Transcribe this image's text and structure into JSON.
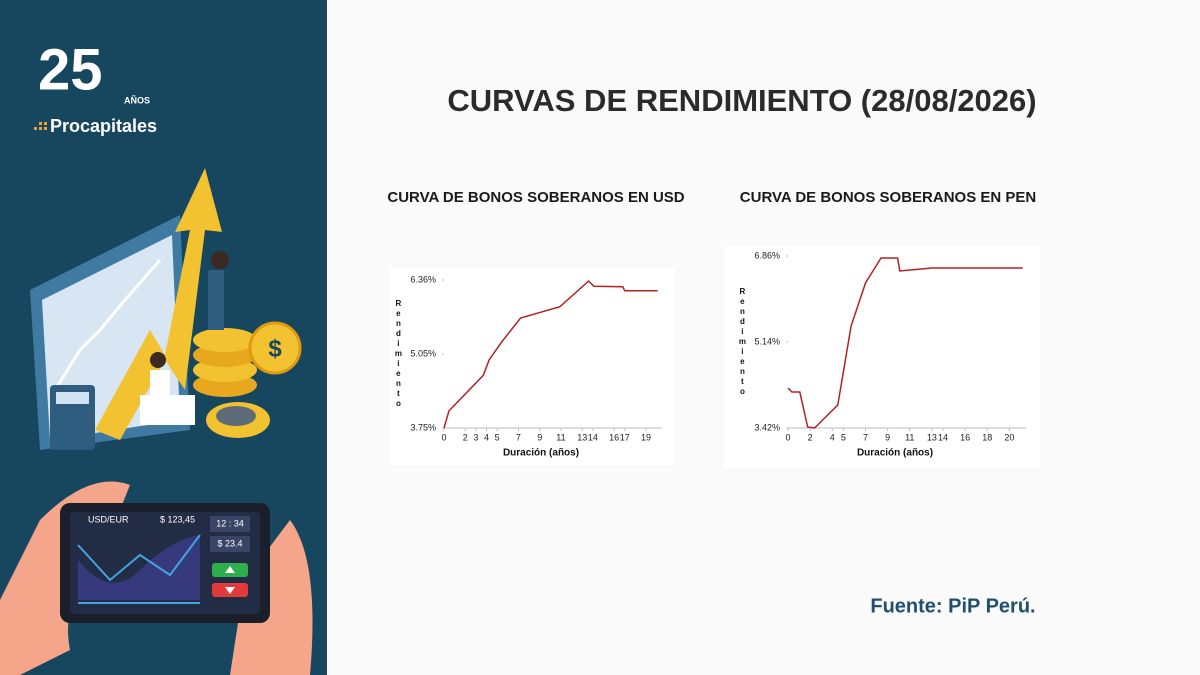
{
  "slide": {
    "title": "CURVAS DE RENDIMIENTO (28/08/2026)",
    "source": "Fuente: PiP Perú.",
    "logo": {
      "number": "25",
      "years": "AÑOS",
      "brand": "Procapitales"
    }
  },
  "illustration": {
    "pair": "USD/EUR",
    "price": "$ 123,45",
    "time": "12 : 34",
    "amount": "$ 23.4"
  },
  "chart_data": [
    {
      "type": "line",
      "title": "CURVA DE BONOS SOBERANOS EN USD",
      "xlabel": "Duración (años)",
      "ylabel": "Rendimiento",
      "color": "#b22222",
      "x": [
        0,
        0.46,
        3.7,
        4.24,
        5.44,
        7.2,
        10.9,
        13.6,
        14.1,
        16.8,
        17.0,
        20.1
      ],
      "values": [
        3.75,
        4.05,
        4.68,
        4.95,
        5.27,
        5.69,
        5.89,
        6.34,
        6.25,
        6.24,
        6.17,
        6.17
      ],
      "xlim": [
        0,
        20.5
      ],
      "xticks": [
        0,
        2,
        3,
        4,
        5,
        7,
        9,
        11,
        13,
        14,
        16,
        17,
        19
      ],
      "ylim": [
        3.75,
        6.36
      ],
      "yticks": [
        {
          "value": 3.75,
          "label": "3.75%"
        },
        {
          "value": 5.05,
          "label": "5.05%"
        },
        {
          "value": 6.36,
          "label": "6.36%"
        }
      ]
    },
    {
      "type": "line",
      "title": "CURVA DE BONOS SOBERANOS EN PEN",
      "xlabel": "Duración (años)",
      "ylabel": "Rendimiento",
      "color": "#b22222",
      "x": [
        0,
        0.36,
        1.07,
        1.78,
        2.4,
        4.5,
        5.7,
        7.0,
        8.4,
        9.9,
        10.1,
        13.0,
        21.2
      ],
      "values": [
        4.22,
        4.14,
        4.14,
        3.44,
        3.42,
        3.88,
        5.46,
        6.32,
        6.82,
        6.82,
        6.56,
        6.62,
        6.62
      ],
      "xlim": [
        0,
        21.5
      ],
      "xticks": [
        0,
        2,
        4,
        5,
        7,
        9,
        11,
        13,
        14,
        16,
        18,
        20
      ],
      "ylim": [
        3.42,
        6.86
      ],
      "yticks": [
        {
          "value": 3.42,
          "label": "3.42%"
        },
        {
          "value": 5.14,
          "label": "5.14%"
        },
        {
          "value": 6.86,
          "label": "6.86%"
        }
      ]
    }
  ]
}
